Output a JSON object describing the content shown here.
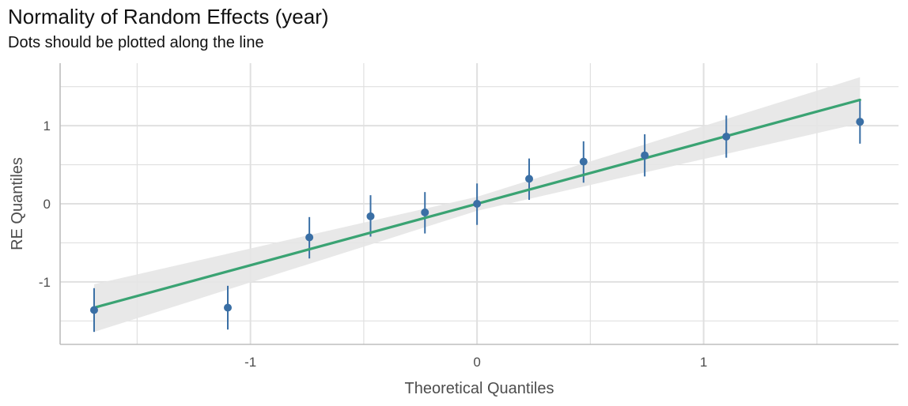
{
  "chart_data": {
    "type": "scatter",
    "title": "Normality of Random Effects (year)",
    "subtitle": "Dots should be plotted along the line",
    "xlabel": "Theoretical Quantiles",
    "ylabel": "RE Quantiles",
    "xlim": [
      -1.84,
      1.86
    ],
    "ylim": [
      -1.8,
      1.8
    ],
    "x_ticks": [
      -1,
      0,
      1
    ],
    "x_tick_labels": [
      "-1",
      "0",
      "1"
    ],
    "y_ticks": [
      -1,
      0,
      1
    ],
    "y_tick_labels": [
      "-1",
      "0",
      "1"
    ],
    "grid": true,
    "points": [
      {
        "x": -1.69,
        "y": -1.36,
        "lower": -1.64,
        "upper": -1.08
      },
      {
        "x": -1.1,
        "y": -1.33,
        "lower": -1.61,
        "upper": -1.05
      },
      {
        "x": -0.74,
        "y": -0.43,
        "lower": -0.7,
        "upper": -0.17
      },
      {
        "x": -0.47,
        "y": -0.16,
        "lower": -0.42,
        "upper": 0.11
      },
      {
        "x": -0.23,
        "y": -0.11,
        "lower": -0.38,
        "upper": 0.15
      },
      {
        "x": 0.0,
        "y": 0.0,
        "lower": -0.27,
        "upper": 0.26
      },
      {
        "x": 0.23,
        "y": 0.32,
        "lower": 0.05,
        "upper": 0.58
      },
      {
        "x": 0.47,
        "y": 0.54,
        "lower": 0.27,
        "upper": 0.8
      },
      {
        "x": 0.74,
        "y": 0.62,
        "lower": 0.35,
        "upper": 0.89
      },
      {
        "x": 1.1,
        "y": 0.86,
        "lower": 0.59,
        "upper": 1.13
      },
      {
        "x": 1.69,
        "y": 1.05,
        "lower": 0.77,
        "upper": 1.32
      }
    ],
    "reference_line": {
      "slope": 0.787,
      "intercept": 0.0,
      "x_range": [
        -1.69,
        1.69
      ]
    },
    "confidence_band": [
      {
        "x": -1.69,
        "lower": -1.64,
        "upper": -1.03
      },
      {
        "x": 0.0,
        "lower": -0.09,
        "upper": 0.09
      },
      {
        "x": 1.69,
        "lower": 1.03,
        "upper": 1.62
      }
    ],
    "colors": {
      "points": "#3a6fa5",
      "line": "#3aa373",
      "band": "#e5e5e5",
      "grid": "#e0e0e0",
      "axis": "#bdbdbd"
    }
  }
}
